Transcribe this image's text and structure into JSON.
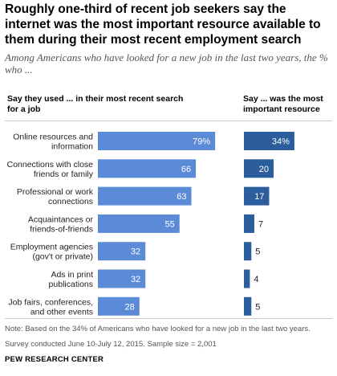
{
  "title": "Roughly one-third of recent job seekers say the internet was the most important resource available to them during their most recent employment search",
  "subtitle": "Among Americans who have looked for a new job in the last two years, the % who ...",
  "footer": {
    "note": "Note: Based on the 34% of Americans who have looked for a new job in the last two years.",
    "survey": "Survey conducted June 10-July 12, 2015. Sample size = 2,001",
    "source": "PEW RESEARCH CENTER"
  },
  "colors": {
    "used": "#5b8bd6",
    "important": "#2c5e9e"
  },
  "chart_data": {
    "type": "bar",
    "orientation": "horizontal",
    "categories": [
      [
        "Online resources and",
        "information"
      ],
      [
        "Connections with close",
        "friends or family"
      ],
      [
        "Professional or work",
        "connections"
      ],
      [
        "Acquaintances or",
        "friends-of-friends"
      ],
      [
        "Employment agencies",
        "(gov't or private)"
      ],
      [
        "Ads in print",
        "publications"
      ],
      [
        "Job fairs, conferences,",
        "and other events"
      ]
    ],
    "series": [
      {
        "name": "Say they used ... in their most recent search for a job",
        "values": [
          79,
          66,
          63,
          55,
          32,
          32,
          28
        ],
        "labels": [
          "79%",
          "66",
          "63",
          "55",
          "32",
          "32",
          "28"
        ]
      },
      {
        "name": "Say ... was the most important resource",
        "values": [
          34,
          20,
          17,
          7,
          5,
          4,
          5
        ],
        "labels": [
          "34%",
          "20",
          "17",
          "7",
          "5",
          "4",
          "5"
        ]
      }
    ]
  }
}
